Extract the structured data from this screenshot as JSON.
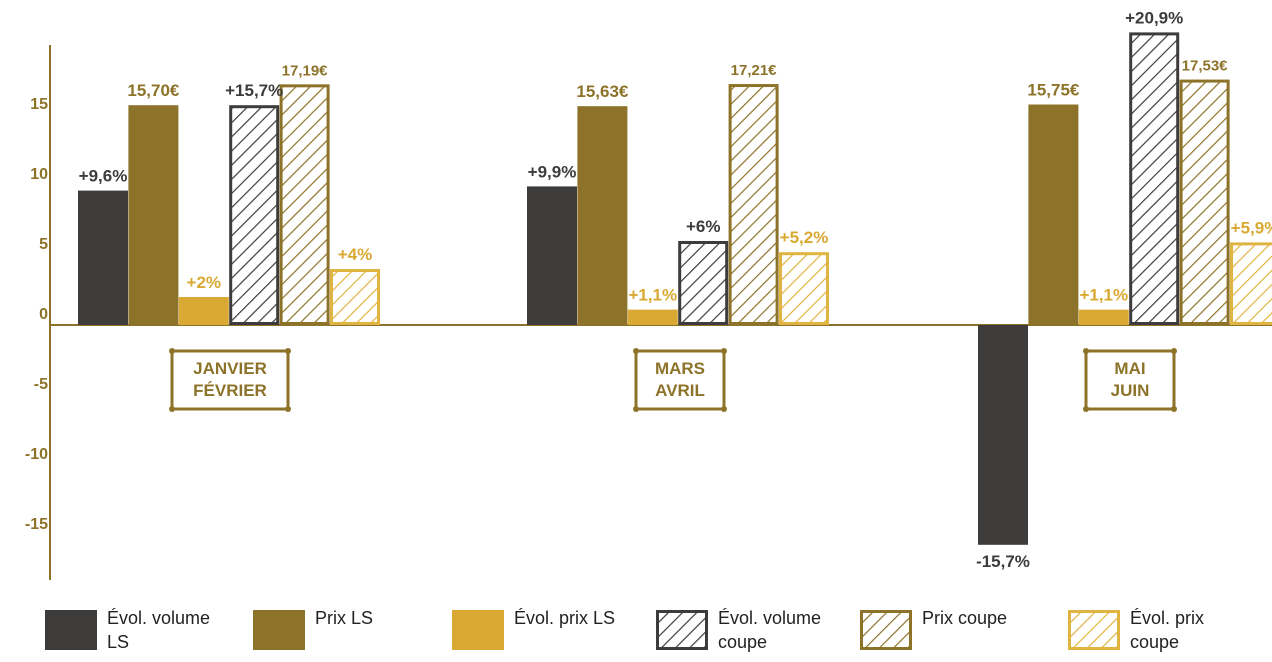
{
  "chart_data": {
    "type": "bar",
    "title": "",
    "xlabel": "",
    "ylabel": "",
    "ylim": [
      -17.5,
      20.5
    ],
    "y_ticks": [
      "15",
      "10",
      "5",
      "0",
      "-5",
      "-10",
      "-15"
    ],
    "y_tick_values": [
      15,
      10,
      5,
      0,
      -5,
      -10,
      -15
    ],
    "grid": false,
    "legend_position": "bottom",
    "categories": [
      {
        "line1": "JANVIER",
        "line2": "FÉVRIER"
      },
      {
        "line1": "MARS",
        "line2": "AVRIL"
      },
      {
        "line1": "MAI",
        "line2": "JUIN"
      }
    ],
    "series": [
      {
        "name": "Évol. volume LS",
        "name_line1": "Évol. volume",
        "name_line2": "LS",
        "values": [
          9.6,
          9.9,
          -15.7
        ],
        "labels": [
          "+9,6%",
          "+9,9%",
          "-15,7%"
        ],
        "color": "#3d3c3b",
        "pattern": "solid"
      },
      {
        "name": "Prix LS",
        "name_line1": "Prix LS",
        "name_line2": "",
        "values": [
          15.7,
          15.63,
          15.75
        ],
        "labels": [
          "15,70€",
          "15,63€",
          "15,75€"
        ],
        "color": "#8c7329",
        "pattern": "solid"
      },
      {
        "name": "Évol. prix LS",
        "name_line1": "Évol. prix LS",
        "name_line2": "",
        "values": [
          2,
          1.1,
          1.1
        ],
        "labels": [
          "+2%",
          "+1,1%",
          "+1,1%"
        ],
        "color": "#d9a933",
        "pattern": "solid"
      },
      {
        "name": "Évol. volume coupe",
        "name_line1": "Évol. volume",
        "name_line2": "coupe",
        "values": [
          15.7,
          6,
          20.9
        ],
        "labels": [
          "+15,7%",
          "+6%",
          "+20,9%"
        ],
        "color": "#3d3c3b",
        "pattern": "hatch"
      },
      {
        "name": "Prix coupe",
        "name_line1": "Prix coupe",
        "name_line2": "",
        "values": [
          17.19,
          17.21,
          17.53
        ],
        "labels": [
          "17,19€",
          "17,21€",
          "17,53€"
        ],
        "color": "#8c7329",
        "pattern": "hatch"
      },
      {
        "name": "Évol. prix coupe",
        "name_line1": "Évol. prix",
        "name_line2": "coupe",
        "values": [
          4,
          5.2,
          5.9
        ],
        "labels": [
          "+4%",
          "+5,2%",
          "+5,9%"
        ],
        "color": "#e0b440",
        "pattern": "hatch"
      }
    ]
  }
}
